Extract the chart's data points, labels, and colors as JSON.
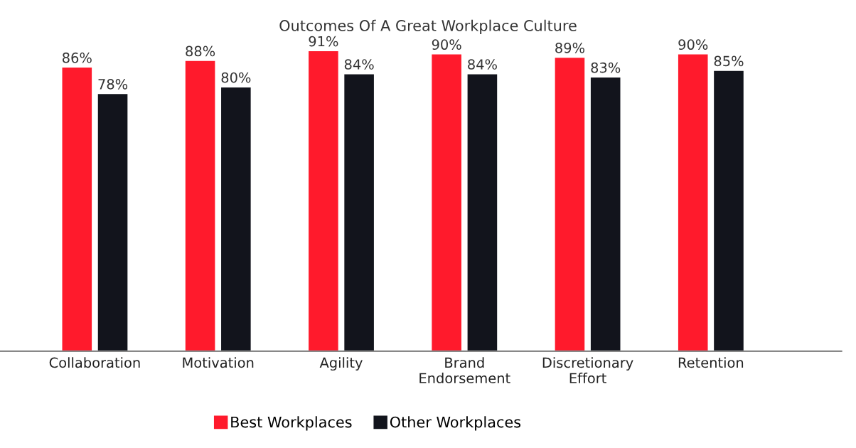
{
  "chart_data": {
    "type": "bar",
    "title": "Outcomes Of A Great Workplace Culture",
    "categories": [
      "Collaboration",
      "Motivation",
      "Agility",
      "Brand\nEndorsement",
      "Discretionary\nEffort",
      "Retention"
    ],
    "series": [
      {
        "name": "Best Workplaces",
        "color": "#ff1a2c",
        "values": [
          86,
          88,
          91,
          90,
          89,
          90
        ],
        "value_labels": [
          "86%",
          "88%",
          "91%",
          "90%",
          "89%",
          "90%"
        ]
      },
      {
        "name": "Other Workplaces",
        "color": "#12141c",
        "values": [
          78,
          80,
          84,
          84,
          83,
          85
        ],
        "value_labels": [
          "78%",
          "80%",
          "84%",
          "84%",
          "83%",
          "85%"
        ]
      }
    ],
    "tick_labels": "x",
    "legend": "bottom"
  }
}
